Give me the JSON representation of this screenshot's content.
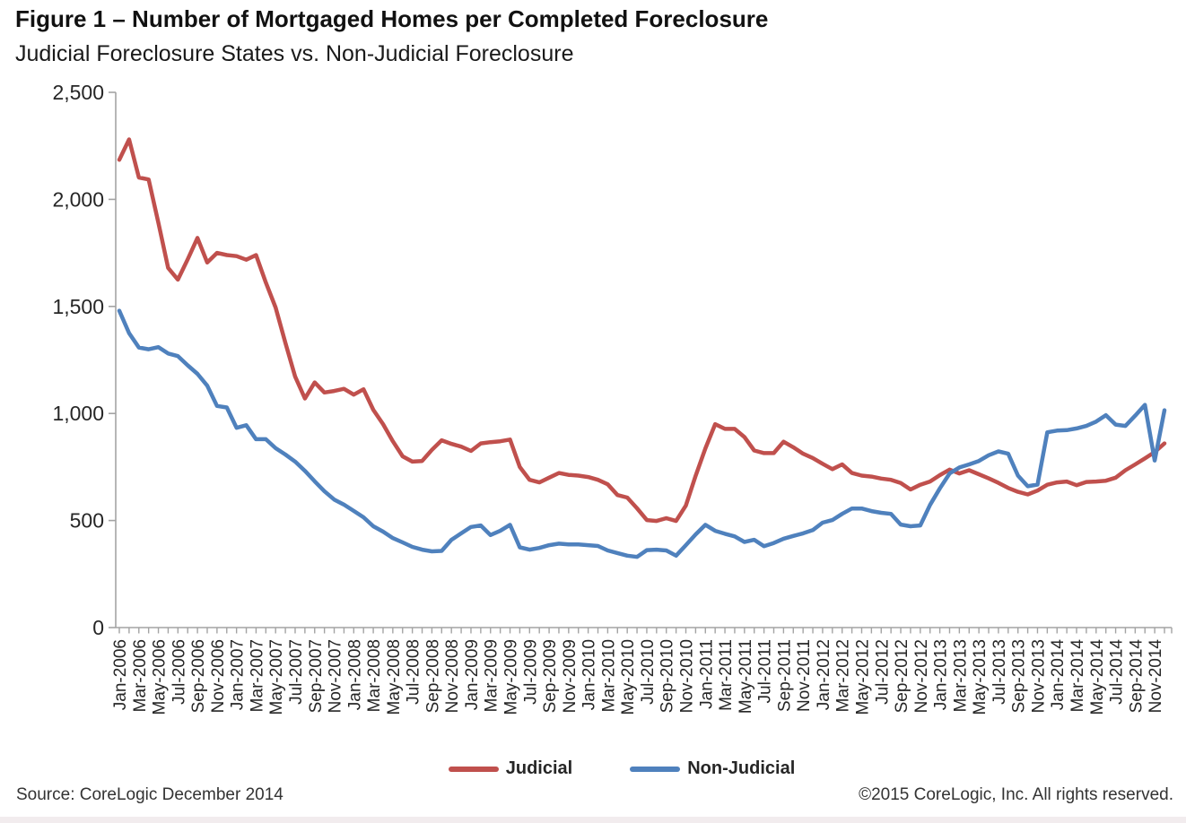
{
  "header": {
    "title": "Figure 1 – Number of Mortgaged Homes per Completed Foreclosure",
    "subtitle": "Judicial Foreclosure States vs. Non-Judicial Foreclosure"
  },
  "legend": {
    "items": [
      {
        "label": "Judicial",
        "color": "#c0504d"
      },
      {
        "label": "Non-Judicial",
        "color": "#4f81bd"
      }
    ]
  },
  "footer": {
    "source": "Source: CoreLogic December 2014",
    "copyright": "©2015 CoreLogic, Inc. All rights reserved."
  },
  "chart_data": {
    "type": "line",
    "title": "Figure 1 – Number of Mortgaged Homes per Completed Foreclosure",
    "subtitle": "Judicial Foreclosure States vs. Non-Judicial Foreclosure",
    "x_unit": "month",
    "x_range": [
      "Jan-2006",
      "Dec-2014"
    ],
    "points_per_series": 108,
    "grid": false,
    "legend_position": "bottom",
    "ylim": [
      0,
      2500
    ],
    "axis_color": "#a3a3a3",
    "y_ticks": [
      {
        "v": 0,
        "label": "0"
      },
      {
        "v": 500,
        "label": "500"
      },
      {
        "v": 1000,
        "label": "1,000"
      },
      {
        "v": 1500,
        "label": "1,500"
      },
      {
        "v": 2000,
        "label": "2,000"
      },
      {
        "v": 2500,
        "label": "2,500"
      }
    ],
    "x_tick_labels": [
      "Jan-2006",
      "Mar-2006",
      "May-2006",
      "Jul-2006",
      "Sep-2006",
      "Nov-2006",
      "Jan-2007",
      "Mar-2007",
      "May-2007",
      "Jul-2007",
      "Sep-2007",
      "Nov-2007",
      "Jan-2008",
      "Mar-2008",
      "May-2008",
      "Jul-2008",
      "Sep-2008",
      "Nov-2008",
      "Jan-2009",
      "Mar-2009",
      "May-2009",
      "Jul-2009",
      "Sep-2009",
      "Nov-2009",
      "Jan-2010",
      "Mar-2010",
      "May-2010",
      "Jul-2010",
      "Sep-2010",
      "Nov-2010",
      "Jan-2011",
      "Mar-2011",
      "May-2011",
      "Jul-2011",
      "Sep-2011",
      "Nov-2011",
      "Jan-2012",
      "Mar-2012",
      "May-2012",
      "Jul-2012",
      "Sep-2012",
      "Nov-2012",
      "Jan-2013",
      "Mar-2013",
      "May-2013",
      "Jul-2013",
      "Sep-2013",
      "Nov-2013",
      "Jan-2014",
      "Mar-2014",
      "May-2014",
      "Jul-2014",
      "Sep-2014",
      "Nov-2014"
    ],
    "series": [
      {
        "name": "Judicial",
        "color": "#c0504d",
        "values": [
          2185,
          2280,
          2102,
          2093,
          1890,
          1680,
          1625,
          1720,
          1820,
          1705,
          1750,
          1740,
          1735,
          1718,
          1740,
          1612,
          1495,
          1330,
          1172,
          1070,
          1145,
          1098,
          1105,
          1115,
          1088,
          1113,
          1017,
          950,
          870,
          800,
          775,
          778,
          830,
          875,
          858,
          845,
          825,
          860,
          866,
          870,
          878,
          750,
          690,
          678,
          700,
          722,
          713,
          710,
          703,
          690,
          669,
          619,
          607,
          557,
          502,
          498,
          511,
          498,
          570,
          709,
          837,
          950,
          928,
          928,
          890,
          827,
          815,
          815,
          868,
          842,
          812,
          792,
          765,
          740,
          762,
          722,
          710,
          705,
          696,
          690,
          675,
          645,
          667,
          682,
          712,
          738,
          720,
          735,
          716,
          697,
          676,
          652,
          634,
          622,
          640,
          667,
          678,
          682,
          665,
          680,
          682,
          686,
          700,
          735,
          762,
          790,
          820,
          860
        ]
      },
      {
        "name": "Non-Judicial",
        "color": "#4f81bd",
        "values": [
          1480,
          1375,
          1308,
          1300,
          1310,
          1280,
          1268,
          1225,
          1185,
          1130,
          1035,
          1028,
          933,
          945,
          880,
          880,
          838,
          808,
          775,
          732,
          683,
          637,
          598,
          574,
          545,
          515,
          473,
          448,
          418,
          398,
          377,
          364,
          356,
          358,
          410,
          440,
          470,
          477,
          432,
          452,
          480,
          375,
          364,
          372,
          385,
          392,
          388,
          388,
          385,
          381,
          360,
          348,
          336,
          330,
          362,
          364,
          360,
          336,
          385,
          435,
          480,
          452,
          438,
          426,
          400,
          410,
          380,
          395,
          415,
          428,
          440,
          455,
          490,
          502,
          531,
          556,
          556,
          544,
          536,
          531,
          481,
          473,
          477,
          573,
          650,
          720,
          748,
          762,
          778,
          805,
          823,
          812,
          710,
          660,
          668,
          912,
          920,
          922,
          930,
          942,
          962,
          992,
          948,
          942,
          990,
          1040,
          780,
          1015
        ]
      }
    ]
  }
}
